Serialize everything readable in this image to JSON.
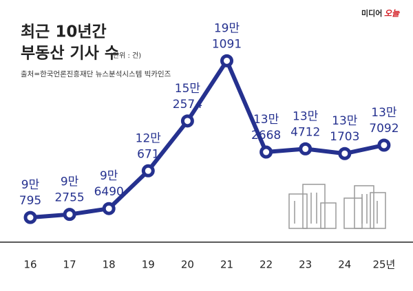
{
  "chart_data": {
    "type": "line",
    "title": [
      "최근 10년간",
      "부동산 기사 수"
    ],
    "unit": "(단위 : 건)",
    "source": "출처=한국언론진흥재단 뉴스분석시스템 빅카인즈",
    "logo": [
      "미디어",
      "오늘"
    ],
    "categories": [
      "16",
      "17",
      "18",
      "19",
      "20",
      "21",
      "22",
      "23",
      "24",
      "25년"
    ],
    "values": [
      90795,
      92755,
      96490,
      120671,
      152574,
      191091,
      132668,
      134712,
      131703,
      137092
    ],
    "value_labels": [
      [
        "9만",
        "795"
      ],
      [
        "9만",
        "2755"
      ],
      [
        "9만",
        "6490"
      ],
      [
        "12만",
        "671"
      ],
      [
        "15만",
        "2574"
      ],
      [
        "19만",
        "1091"
      ],
      [
        "13만",
        "2668"
      ],
      [
        "13만",
        "4712"
      ],
      [
        "13만",
        "1703"
      ],
      [
        "13만",
        "7092"
      ]
    ],
    "color": "#25318f",
    "ylim": [
      75000,
      230000
    ]
  }
}
